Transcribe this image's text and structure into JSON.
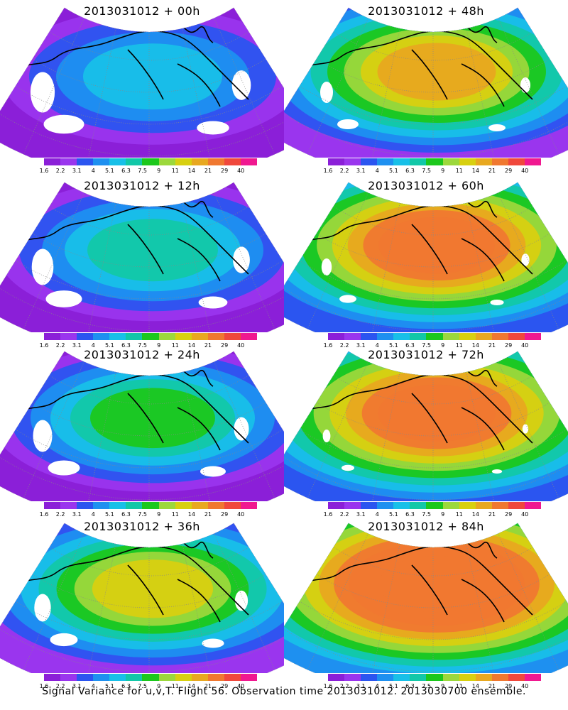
{
  "panels": [
    {
      "title": "2013031012 + 00h",
      "level": 0.15
    },
    {
      "title": "2013031012 + 48h",
      "level": 0.6
    },
    {
      "title": "2013031012 + 12h",
      "level": 0.25
    },
    {
      "title": "2013031012 + 60h",
      "level": 0.7
    },
    {
      "title": "2013031012 + 24h",
      "level": 0.35
    },
    {
      "title": "2013031012 + 72h",
      "level": 0.8
    },
    {
      "title": "2013031012 + 36h",
      "level": 0.45
    },
    {
      "title": "2013031012 + 84h",
      "level": 0.9
    }
  ],
  "colorbar": {
    "colors": [
      "#8b1fd8",
      "#9a35ee",
      "#2b55f0",
      "#1e90f0",
      "#18c0e8",
      "#12c8a8",
      "#1cc81c",
      "#9cd83c",
      "#d8d010",
      "#e8a820",
      "#f07830",
      "#f0483c",
      "#f01890"
    ],
    "labels": [
      "1.6",
      "2.2",
      "3.1",
      "4",
      "5.1",
      "6.3",
      "7.5",
      "9",
      "11",
      "14",
      "21",
      "29",
      "40"
    ]
  },
  "footer": "Signal Variance for u,v,T. Flight 56. Observation time 2013031012. 2013030700 ensemble."
}
